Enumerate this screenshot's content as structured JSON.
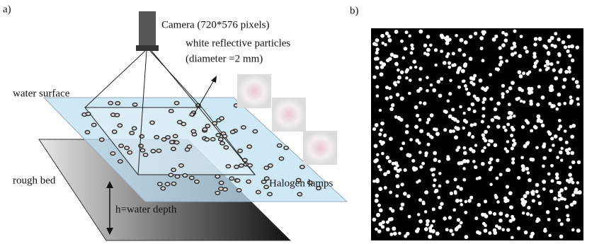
{
  "panel_a": {
    "label": "a)",
    "camera": "Camera (720*576 pixels)",
    "particles_line1": "white reflective particles",
    "particles_line2": "(diameter =2 mm)",
    "water_surface": "water surface",
    "rough_bed": "rough bed",
    "depth": "h=water depth",
    "lamps": "Halogen lamps"
  },
  "panel_b": {
    "label": "b)"
  }
}
